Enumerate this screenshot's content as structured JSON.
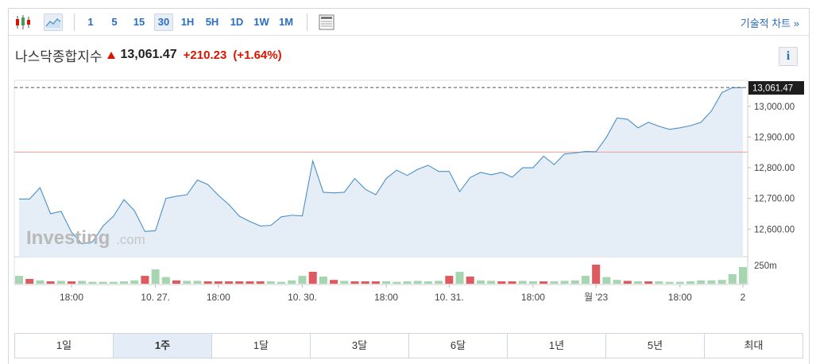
{
  "toolbar": {
    "intervals": [
      "1",
      "5",
      "15",
      "30",
      "1H",
      "5H",
      "1D",
      "1W",
      "1M"
    ],
    "active_interval": "30",
    "advanced_chart_label": "기술적 차트 »"
  },
  "header": {
    "name": "나스닥종합지수",
    "price": "13,061.47",
    "change": "+210.23",
    "change_pct": "(+1.64%)",
    "info_label": "i",
    "up_color": "#d91400"
  },
  "watermark": {
    "brand": "Investing",
    "suffix": ".com"
  },
  "ranges": {
    "items": [
      "1일",
      "1주",
      "1달",
      "3달",
      "6달",
      "1년",
      "5년",
      "최대"
    ],
    "active": "1주"
  },
  "chart_data": {
    "type": "area",
    "title": "",
    "ylabel": "",
    "ylim": [
      12510,
      13085
    ],
    "yticks": [
      12600,
      12700,
      12800,
      12900,
      13000
    ],
    "ytick_labels": [
      "12,600.00",
      "12,700.00",
      "12,800.00",
      "12,900.00",
      "13,000.00"
    ],
    "last_price": 13061.47,
    "last_price_label": "13,061.47",
    "reference_level": 12851,
    "xtick_labels": [
      {
        "index": 5,
        "label": "18:00"
      },
      {
        "index": 13,
        "label": "10. 27."
      },
      {
        "index": 19,
        "label": "18:00"
      },
      {
        "index": 27,
        "label": "10. 30."
      },
      {
        "index": 35,
        "label": "18:00"
      },
      {
        "index": 41,
        "label": "10. 31."
      },
      {
        "index": 49,
        "label": "18:00"
      },
      {
        "index": 55,
        "label": "월 '23"
      },
      {
        "index": 63,
        "label": "18:00"
      },
      {
        "index": 69,
        "label": "2"
      }
    ],
    "series": [
      {
        "values": [
          12698,
          12698,
          12735,
          12650,
          12658,
          12590,
          12552,
          12558,
          12610,
          12642,
          12696,
          12660,
          12592,
          12595,
          12700,
          12707,
          12712,
          12760,
          12745,
          12710,
          12680,
          12642,
          12625,
          12610,
          12612,
          12640,
          12645,
          12643,
          12822,
          12720,
          12718,
          12720,
          12765,
          12730,
          12712,
          12765,
          12792,
          12775,
          12795,
          12808,
          12788,
          12788,
          12722,
          12768,
          12785,
          12777,
          12785,
          12769,
          12800,
          12800,
          12838,
          12810,
          12845,
          12848,
          12853,
          12852,
          12900,
          12962,
          12958,
          12930,
          12948,
          12935,
          12925,
          12930,
          12937,
          12948,
          12985,
          13045,
          13061,
          13061
        ]
      }
    ],
    "volume_label": "250m",
    "volume_scale_value": 250,
    "volume": [
      {
        "v": 0.33,
        "up": true
      },
      {
        "v": 0.2,
        "up": false
      },
      {
        "v": 0.14,
        "up": true
      },
      {
        "v": 0.1,
        "up": false
      },
      {
        "v": 0.12,
        "up": true
      },
      {
        "v": 0.1,
        "up": false
      },
      {
        "v": 0.12,
        "up": true
      },
      {
        "v": 0.08,
        "up": true
      },
      {
        "v": 0.08,
        "up": true
      },
      {
        "v": 0.08,
        "up": true
      },
      {
        "v": 0.1,
        "up": true
      },
      {
        "v": 0.14,
        "up": true
      },
      {
        "v": 0.33,
        "up": false
      },
      {
        "v": 0.6,
        "up": true
      },
      {
        "v": 0.28,
        "up": true
      },
      {
        "v": 0.14,
        "up": false
      },
      {
        "v": 0.12,
        "up": true
      },
      {
        "v": 0.12,
        "up": true
      },
      {
        "v": 0.1,
        "up": false
      },
      {
        "v": 0.1,
        "up": false
      },
      {
        "v": 0.1,
        "up": false
      },
      {
        "v": 0.1,
        "up": false
      },
      {
        "v": 0.1,
        "up": false
      },
      {
        "v": 0.1,
        "up": false
      },
      {
        "v": 0.1,
        "up": true
      },
      {
        "v": 0.08,
        "up": true
      },
      {
        "v": 0.14,
        "up": true
      },
      {
        "v": 0.33,
        "up": true
      },
      {
        "v": 0.5,
        "up": false
      },
      {
        "v": 0.3,
        "up": true
      },
      {
        "v": 0.16,
        "up": false
      },
      {
        "v": 0.12,
        "up": true
      },
      {
        "v": 0.1,
        "up": false
      },
      {
        "v": 0.1,
        "up": false
      },
      {
        "v": 0.1,
        "up": false
      },
      {
        "v": 0.1,
        "up": true
      },
      {
        "v": 0.08,
        "up": true
      },
      {
        "v": 0.1,
        "up": true
      },
      {
        "v": 0.12,
        "up": true
      },
      {
        "v": 0.1,
        "up": true
      },
      {
        "v": 0.12,
        "up": true
      },
      {
        "v": 0.33,
        "up": false
      },
      {
        "v": 0.5,
        "up": true
      },
      {
        "v": 0.3,
        "up": false
      },
      {
        "v": 0.14,
        "up": true
      },
      {
        "v": 0.12,
        "up": true
      },
      {
        "v": 0.1,
        "up": false
      },
      {
        "v": 0.1,
        "up": false
      },
      {
        "v": 0.12,
        "up": true
      },
      {
        "v": 0.1,
        "up": true
      },
      {
        "v": 0.1,
        "up": false
      },
      {
        "v": 0.1,
        "up": true
      },
      {
        "v": 0.12,
        "up": true
      },
      {
        "v": 0.14,
        "up": true
      },
      {
        "v": 0.33,
        "up": true
      },
      {
        "v": 0.8,
        "up": false
      },
      {
        "v": 0.28,
        "up": true
      },
      {
        "v": 0.16,
        "up": true
      },
      {
        "v": 0.12,
        "up": false
      },
      {
        "v": 0.1,
        "up": true
      },
      {
        "v": 0.1,
        "up": false
      },
      {
        "v": 0.1,
        "up": true
      },
      {
        "v": 0.08,
        "up": true
      },
      {
        "v": 0.08,
        "up": true
      },
      {
        "v": 0.1,
        "up": true
      },
      {
        "v": 0.14,
        "up": true
      },
      {
        "v": 0.14,
        "up": true
      },
      {
        "v": 0.16,
        "up": true
      },
      {
        "v": 0.4,
        "up": true
      },
      {
        "v": 0.7,
        "up": true
      }
    ],
    "colors": {
      "line": "#4a90c8",
      "fill": "#e5eef7",
      "grid": "#c9c9c9",
      "reference": "#f09a9a",
      "volume_up": "#a6d6b0",
      "volume_down": "#e0595e",
      "last_price_tag_bg": "#1d1d1d"
    }
  }
}
